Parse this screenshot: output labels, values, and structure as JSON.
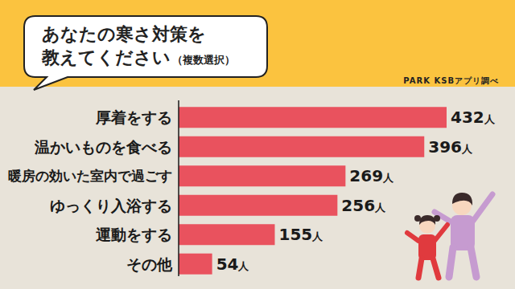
{
  "chart_data": {
    "type": "bar",
    "orientation": "horizontal",
    "title": "あなたの寒さ対策を\n教えてください",
    "subtitle": "（複数選択）",
    "annotations": [
      "PARK KSBアプリ調べ"
    ],
    "categories": [
      "厚着をする",
      "温かいものを食べる",
      "暖房の効いた室内で過ごす",
      "ゆっくり入浴する",
      "運動をする",
      "その他"
    ],
    "values": [
      432,
      396,
      269,
      256,
      155,
      54
    ],
    "value_labels": [
      "432人",
      "396人",
      "269人",
      "256人",
      "155人",
      "54人"
    ],
    "color": "#e9525e",
    "xlim": [
      0,
      432
    ],
    "data_labels": true,
    "tick_labels": "y",
    "grid": false
  }
}
